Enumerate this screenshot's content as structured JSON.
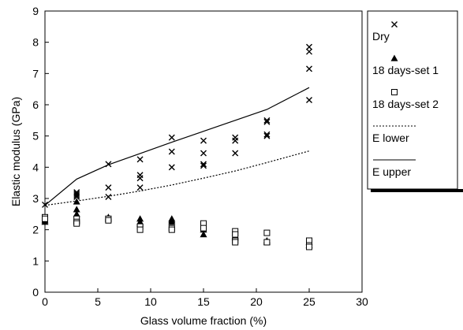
{
  "chart_data": {
    "type": "scatter",
    "title": "",
    "xlabel": "Glass volume fraction (%)",
    "ylabel": "Elastic modulus (GPa)",
    "xlim": [
      0,
      30
    ],
    "ylim": [
      0,
      9
    ],
    "xticks": [
      0,
      5,
      10,
      15,
      20,
      25,
      30
    ],
    "yticks": [
      0,
      1,
      2,
      3,
      4,
      5,
      6,
      7,
      8,
      9
    ],
    "grid": false,
    "legend_position": "right",
    "series": [
      {
        "name": "Dry",
        "kind": "scatter",
        "marker": "x",
        "color": "#000000",
        "points": [
          [
            0,
            2.8
          ],
          [
            3,
            3.2
          ],
          [
            3,
            3.15
          ],
          [
            3,
            3.1
          ],
          [
            3,
            3.05
          ],
          [
            6,
            4.1
          ],
          [
            6,
            3.35
          ],
          [
            6,
            3.05
          ],
          [
            9,
            4.25
          ],
          [
            9,
            3.75
          ],
          [
            9,
            3.65
          ],
          [
            9,
            3.35
          ],
          [
            12,
            4.95
          ],
          [
            12,
            4.5
          ],
          [
            12,
            4.0
          ],
          [
            15,
            4.85
          ],
          [
            15,
            4.45
          ],
          [
            15,
            4.1
          ],
          [
            15,
            4.05
          ],
          [
            18,
            4.95
          ],
          [
            18,
            4.85
          ],
          [
            18,
            4.45
          ],
          [
            21,
            5.5
          ],
          [
            21,
            5.45
          ],
          [
            21,
            5.05
          ],
          [
            21,
            5.0
          ],
          [
            25,
            7.85
          ],
          [
            25,
            7.7
          ],
          [
            25,
            7.15
          ],
          [
            25,
            6.15
          ]
        ]
      },
      {
        "name": "18 days-set 1",
        "kind": "scatter",
        "marker": "triangle",
        "color": "#000000",
        "points": [
          [
            0,
            2.3
          ],
          [
            0,
            2.25
          ],
          [
            3,
            2.9
          ],
          [
            3,
            2.65
          ],
          [
            3,
            2.5
          ],
          [
            3,
            2.3
          ],
          [
            6,
            2.4
          ],
          [
            6,
            2.35
          ],
          [
            9,
            2.35
          ],
          [
            9,
            2.25
          ],
          [
            9,
            2.2
          ],
          [
            12,
            2.35
          ],
          [
            12,
            2.3
          ],
          [
            12,
            2.25
          ],
          [
            15,
            2.0
          ],
          [
            15,
            1.85
          ],
          [
            18,
            1.9
          ],
          [
            18,
            1.8
          ],
          [
            18,
            1.75
          ],
          [
            21,
            1.65
          ],
          [
            21,
            1.6
          ],
          [
            25,
            1.6
          ],
          [
            25,
            1.5
          ]
        ]
      },
      {
        "name": "18 days-set 2",
        "kind": "scatter",
        "marker": "square-open",
        "color": "#000000",
        "points": [
          [
            0,
            2.4
          ],
          [
            0,
            2.35
          ],
          [
            3,
            2.35
          ],
          [
            3,
            2.25
          ],
          [
            3,
            2.2
          ],
          [
            6,
            2.35
          ],
          [
            6,
            2.3
          ],
          [
            9,
            2.1
          ],
          [
            9,
            2.0
          ],
          [
            12,
            2.05
          ],
          [
            12,
            2.0
          ],
          [
            15,
            2.2
          ],
          [
            15,
            2.05
          ],
          [
            18,
            1.95
          ],
          [
            18,
            1.85
          ],
          [
            18,
            1.65
          ],
          [
            18,
            1.6
          ],
          [
            21,
            1.9
          ],
          [
            21,
            1.6
          ],
          [
            25,
            1.65
          ],
          [
            25,
            1.5
          ],
          [
            25,
            1.45
          ]
        ]
      },
      {
        "name": "E lower",
        "kind": "line",
        "dash": "dotted",
        "color": "#000000",
        "points": [
          [
            0,
            2.78
          ],
          [
            3,
            2.92
          ],
          [
            6,
            3.07
          ],
          [
            9,
            3.24
          ],
          [
            12,
            3.43
          ],
          [
            15,
            3.65
          ],
          [
            18,
            3.88
          ],
          [
            21,
            4.15
          ],
          [
            25,
            4.52
          ]
        ]
      },
      {
        "name": "E upper",
        "kind": "line",
        "dash": "solid",
        "color": "#000000",
        "points": [
          [
            0,
            2.78
          ],
          [
            3,
            3.62
          ],
          [
            6,
            4.08
          ],
          [
            9,
            4.44
          ],
          [
            12,
            4.8
          ],
          [
            15,
            5.15
          ],
          [
            18,
            5.5
          ],
          [
            21,
            5.85
          ],
          [
            25,
            6.55
          ]
        ]
      }
    ]
  }
}
